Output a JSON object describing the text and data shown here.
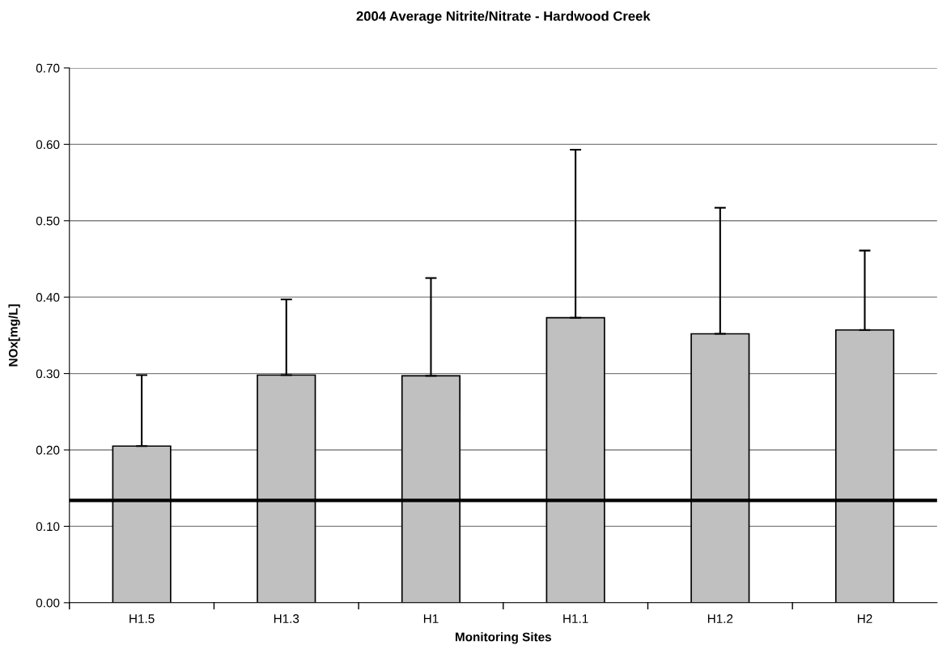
{
  "chart_data": {
    "type": "bar",
    "title": "2004 Average Nitrite/Nitrate - Hardwood Creek",
    "xlabel": "Monitoring Sites",
    "ylabel": "NOx[mg/L]",
    "categories": [
      "H1.5",
      "H1.3",
      "H1",
      "H1.1",
      "H1.2",
      "H2"
    ],
    "values": [
      0.205,
      0.298,
      0.297,
      0.373,
      0.352,
      0.357
    ],
    "errors": [
      [
        0.205,
        0.298
      ],
      [
        0.298,
        0.397
      ],
      [
        0.297,
        0.425
      ],
      [
        0.373,
        0.593
      ],
      [
        0.352,
        0.517
      ],
      [
        0.357,
        0.461
      ]
    ],
    "color": "#c0c0c0",
    "ylim": [
      0,
      0.7
    ],
    "yticks": [
      {
        "value": 0,
        "label": "0.00"
      },
      {
        "value": 0.1,
        "label": "0.10"
      },
      {
        "value": 0.2,
        "label": "0.20"
      },
      {
        "value": 0.3,
        "label": "0.30"
      },
      {
        "value": 0.4,
        "label": "0.40"
      },
      {
        "value": 0.5,
        "label": "0.50"
      },
      {
        "value": 0.6,
        "label": "0.60"
      },
      {
        "value": 0.7,
        "label": "0.70"
      }
    ],
    "ref_lines": [
      {
        "axis": "y",
        "value": 0.134,
        "color": "#000000"
      }
    ],
    "grid": "y"
  }
}
